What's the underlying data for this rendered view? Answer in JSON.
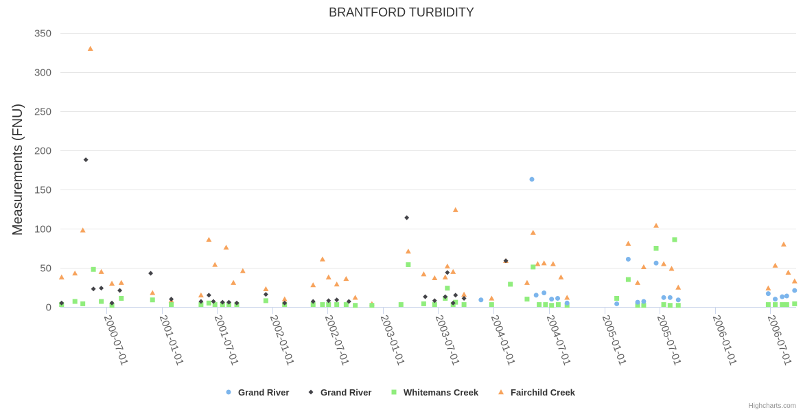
{
  "chart_data": {
    "type": "scatter",
    "title": "BRANTFORD TURBIDITY",
    "ylabel": "Measurements (FNU)",
    "xlabel": "",
    "xlim": [
      "2000-02-01",
      "2006-09-25"
    ],
    "ylim": [
      0,
      350
    ],
    "yticks": [
      0,
      50,
      100,
      150,
      200,
      250,
      300,
      350
    ],
    "xticks": [
      "2000-07-01",
      "2001-01-01",
      "2001-07-01",
      "2002-01-01",
      "2002-07-01",
      "2003-01-01",
      "2003-07-01",
      "2004-01-01",
      "2004-07-01",
      "2005-01-01",
      "2005-07-01",
      "2006-01-01",
      "2006-07-01"
    ],
    "grid": true,
    "legend_position": "bottom",
    "credits": "Highcharts.com",
    "series": [
      {
        "name": "Grand River",
        "marker": "circle",
        "color": "#7cb5ec",
        "points": [
          [
            "2003-11-20",
            9
          ],
          [
            "2004-05-06",
            163
          ],
          [
            "2004-05-20",
            15
          ],
          [
            "2004-06-15",
            18
          ],
          [
            "2004-07-10",
            10
          ],
          [
            "2004-07-30",
            11
          ],
          [
            "2004-08-30",
            5
          ],
          [
            "2005-02-10",
            4
          ],
          [
            "2005-03-20",
            61
          ],
          [
            "2005-04-20",
            6
          ],
          [
            "2005-05-10",
            7
          ],
          [
            "2005-06-20",
            56
          ],
          [
            "2005-07-15",
            12
          ],
          [
            "2005-08-05",
            12
          ],
          [
            "2005-09-01",
            9
          ],
          [
            "2006-06-25",
            17
          ],
          [
            "2006-07-18",
            10
          ],
          [
            "2006-08-10",
            13
          ],
          [
            "2006-08-25",
            14
          ],
          [
            "2006-09-20",
            21
          ]
        ]
      },
      {
        "name": "Grand River",
        "marker": "diamond",
        "color": "#434348",
        "points": [
          [
            "2000-02-05",
            5
          ],
          [
            "2000-04-25",
            188
          ],
          [
            "2000-05-20",
            23
          ],
          [
            "2000-06-15",
            24
          ],
          [
            "2000-07-20",
            5
          ],
          [
            "2000-08-15",
            21
          ],
          [
            "2000-11-25",
            43
          ],
          [
            "2001-02-01",
            10
          ],
          [
            "2001-05-10",
            7
          ],
          [
            "2001-06-05",
            15
          ],
          [
            "2001-06-20",
            7
          ],
          [
            "2001-07-20",
            6
          ],
          [
            "2001-08-10",
            6
          ],
          [
            "2001-09-05",
            5
          ],
          [
            "2001-12-10",
            16
          ],
          [
            "2002-02-10",
            5
          ],
          [
            "2002-05-15",
            7
          ],
          [
            "2002-07-05",
            8
          ],
          [
            "2002-08-01",
            9
          ],
          [
            "2002-09-10",
            7
          ],
          [
            "2003-03-20",
            114
          ],
          [
            "2003-05-20",
            13
          ],
          [
            "2003-06-20",
            8
          ],
          [
            "2003-07-25",
            13
          ],
          [
            "2003-08-01",
            44
          ],
          [
            "2003-08-20",
            5
          ],
          [
            "2003-08-28",
            15
          ],
          [
            "2003-09-25",
            11
          ],
          [
            "2004-02-10",
            59
          ]
        ]
      },
      {
        "name": "Whitemans Creek",
        "marker": "square",
        "color": "#90ed7d",
        "points": [
          [
            "2000-02-05",
            3
          ],
          [
            "2000-03-20",
            7
          ],
          [
            "2000-04-15",
            4
          ],
          [
            "2000-05-20",
            48
          ],
          [
            "2000-06-15",
            7
          ],
          [
            "2000-07-20",
            2
          ],
          [
            "2000-08-20",
            11
          ],
          [
            "2000-12-01",
            9
          ],
          [
            "2001-02-01",
            3
          ],
          [
            "2001-05-10",
            3
          ],
          [
            "2001-06-05",
            5
          ],
          [
            "2001-06-25",
            3
          ],
          [
            "2001-07-20",
            3
          ],
          [
            "2001-08-10",
            3
          ],
          [
            "2001-09-05",
            3
          ],
          [
            "2001-12-10",
            8
          ],
          [
            "2002-02-10",
            3
          ],
          [
            "2002-05-15",
            3
          ],
          [
            "2002-06-15",
            3
          ],
          [
            "2002-07-05",
            3
          ],
          [
            "2002-08-01",
            3
          ],
          [
            "2002-09-01",
            3
          ],
          [
            "2002-10-01",
            2
          ],
          [
            "2002-11-25",
            2
          ],
          [
            "2003-03-01",
            3
          ],
          [
            "2003-03-25",
            54
          ],
          [
            "2003-05-15",
            4
          ],
          [
            "2003-06-20",
            3
          ],
          [
            "2003-07-25",
            11
          ],
          [
            "2003-08-01",
            24
          ],
          [
            "2003-08-20",
            3
          ],
          [
            "2003-08-28",
            6
          ],
          [
            "2003-09-25",
            3
          ],
          [
            "2003-12-25",
            3
          ],
          [
            "2004-02-25",
            29
          ],
          [
            "2004-04-20",
            10
          ],
          [
            "2004-05-10",
            51
          ],
          [
            "2004-05-30",
            3
          ],
          [
            "2004-06-20",
            3
          ],
          [
            "2004-07-10",
            2
          ],
          [
            "2004-08-01",
            3
          ],
          [
            "2004-08-30",
            2
          ],
          [
            "2005-02-10",
            11
          ],
          [
            "2005-03-20",
            35
          ],
          [
            "2005-04-20",
            2
          ],
          [
            "2005-05-10",
            2
          ],
          [
            "2005-06-20",
            75
          ],
          [
            "2005-07-15",
            3
          ],
          [
            "2005-08-05",
            2
          ],
          [
            "2005-08-20",
            86
          ],
          [
            "2005-09-01",
            2
          ],
          [
            "2006-06-25",
            3
          ],
          [
            "2006-07-18",
            3
          ],
          [
            "2006-08-10",
            3
          ],
          [
            "2006-08-25",
            3
          ],
          [
            "2006-09-20",
            4
          ]
        ]
      },
      {
        "name": "Fairchild Creek",
        "marker": "triangle",
        "color": "#f7a35c",
        "points": [
          [
            "2000-02-05",
            38
          ],
          [
            "2000-03-20",
            43
          ],
          [
            "2000-04-15",
            98
          ],
          [
            "2000-05-10",
            330
          ],
          [
            "2000-06-15",
            45
          ],
          [
            "2000-07-20",
            30
          ],
          [
            "2000-08-20",
            31
          ],
          [
            "2000-12-01",
            18
          ],
          [
            "2001-02-01",
            8
          ],
          [
            "2001-05-10",
            15
          ],
          [
            "2001-06-05",
            86
          ],
          [
            "2001-06-25",
            54
          ],
          [
            "2001-08-01",
            76
          ],
          [
            "2001-08-25",
            31
          ],
          [
            "2001-09-25",
            46
          ],
          [
            "2001-12-10",
            23
          ],
          [
            "2002-02-10",
            10
          ],
          [
            "2002-05-15",
            28
          ],
          [
            "2002-06-15",
            61
          ],
          [
            "2002-07-05",
            38
          ],
          [
            "2002-08-01",
            29
          ],
          [
            "2002-09-01",
            36
          ],
          [
            "2002-10-01",
            12
          ],
          [
            "2002-11-25",
            4
          ],
          [
            "2003-03-25",
            71
          ],
          [
            "2003-05-15",
            42
          ],
          [
            "2003-06-20",
            37
          ],
          [
            "2003-07-25",
            38
          ],
          [
            "2003-08-01",
            52
          ],
          [
            "2003-08-20",
            45
          ],
          [
            "2003-08-28",
            124
          ],
          [
            "2003-09-25",
            16
          ],
          [
            "2003-12-25",
            11
          ],
          [
            "2004-02-10",
            59
          ],
          [
            "2004-04-20",
            31
          ],
          [
            "2004-05-10",
            95
          ],
          [
            "2004-05-25",
            55
          ],
          [
            "2004-06-15",
            56
          ],
          [
            "2004-07-15",
            55
          ],
          [
            "2004-08-10",
            38
          ],
          [
            "2004-08-30",
            12
          ],
          [
            "2005-03-20",
            81
          ],
          [
            "2005-04-20",
            31
          ],
          [
            "2005-05-10",
            51
          ],
          [
            "2005-06-20",
            104
          ],
          [
            "2005-07-15",
            55
          ],
          [
            "2005-08-10",
            49
          ],
          [
            "2005-09-01",
            25
          ],
          [
            "2006-06-25",
            24
          ],
          [
            "2006-07-18",
            53
          ],
          [
            "2006-08-15",
            80
          ],
          [
            "2006-08-30",
            44
          ],
          [
            "2006-09-20",
            33
          ]
        ]
      }
    ]
  }
}
